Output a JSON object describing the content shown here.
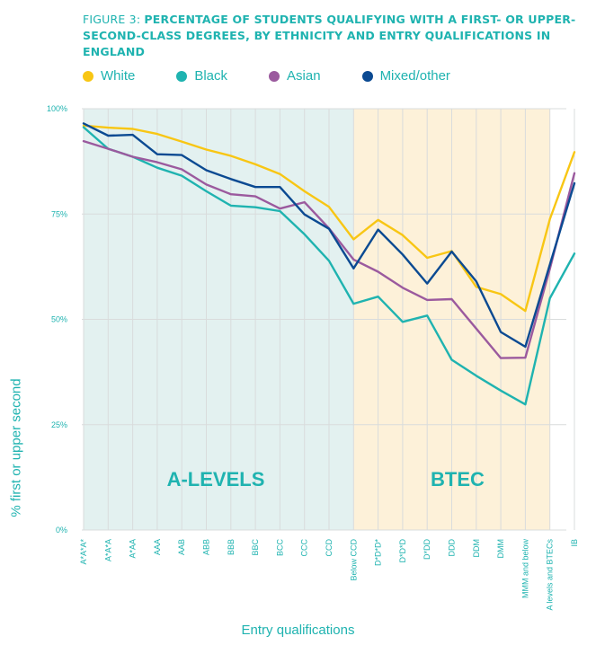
{
  "figure": {
    "lead": "FIGURE 3: ",
    "title": "PERCENTAGE OF STUDENTS QUALIFYING WITH A FIRST- OR UPPER-SECOND-CLASS DEGREES, BY ETHNICITY AND ENTRY QUALIFICATIONS IN ENGLAND"
  },
  "colors": {
    "accent": "#1fb3b0",
    "alevels_band": "#e3f1f0",
    "btec_band": "#fdf1d9",
    "grid": "#d9dcdc"
  },
  "chart_data": {
    "type": "line",
    "xlabel": "Entry qualifications",
    "ylabel": "% first or upper second",
    "ylim": [
      0,
      100
    ],
    "yticks": [
      {
        "value": 0,
        "label": "0%"
      },
      {
        "value": 25,
        "label": "25%"
      },
      {
        "value": 50,
        "label": "50%"
      },
      {
        "value": 75,
        "label": "75%"
      },
      {
        "value": 100,
        "label": "100%"
      }
    ],
    "categories": [
      "A*A*A*",
      "A*A*A",
      "A*AA",
      "AAA",
      "AAB",
      "ABB",
      "BBB",
      "BBC",
      "BCC",
      "CCC",
      "CCD",
      "Below CCD",
      "D*D*D*",
      "D*D*D",
      "D*DD",
      "DDD",
      "DDM",
      "DMM",
      "MMM and below",
      "A levels and BTECs",
      "IB"
    ],
    "regions": [
      {
        "label": "A-LEVELS",
        "from": 0,
        "to": 11,
        "color": "#e3f1f0"
      },
      {
        "label": "BTEC",
        "from": 11,
        "to": 19,
        "color": "#fdf1d9"
      }
    ],
    "legend_position": "top",
    "series": [
      {
        "name": "White",
        "color": "#f8c614",
        "values": [
          96,
          95.5,
          95.2,
          94,
          92.2,
          90.3,
          88.8,
          86.8,
          84.5,
          80.4,
          76.7,
          69,
          73.6,
          70,
          64.6,
          66.2,
          57.7,
          56,
          52,
          73.8,
          89.7
        ]
      },
      {
        "name": "Black",
        "color": "#1fb3b0",
        "values": [
          95.6,
          90.5,
          88.6,
          86,
          84.1,
          80.4,
          77,
          76.6,
          75.7,
          70.2,
          63.9,
          53.7,
          55.4,
          49.4,
          50.9,
          40.4,
          36.6,
          33.1,
          29.8,
          55,
          65.6
        ]
      },
      {
        "name": "Asian",
        "color": "#9b5a9e",
        "values": [
          92.3,
          90.5,
          88.6,
          87.3,
          85.6,
          82,
          79.7,
          79.2,
          76.3,
          77.8,
          71.6,
          64.2,
          61.3,
          57.5,
          54.6,
          54.8,
          47.8,
          40.8,
          40.9,
          62,
          84.7
        ]
      },
      {
        "name": "Mixed/other",
        "color": "#0b4a92",
        "values": [
          96.5,
          93.6,
          93.8,
          89.2,
          89,
          85.4,
          83.3,
          81.4,
          81.4,
          74.9,
          71.5,
          62.1,
          71.3,
          65.4,
          58.5,
          66.1,
          59,
          47,
          43.5,
          63,
          82.3
        ]
      }
    ],
    "region_labels": [
      "A-LEVELS",
      "BTEC"
    ]
  }
}
